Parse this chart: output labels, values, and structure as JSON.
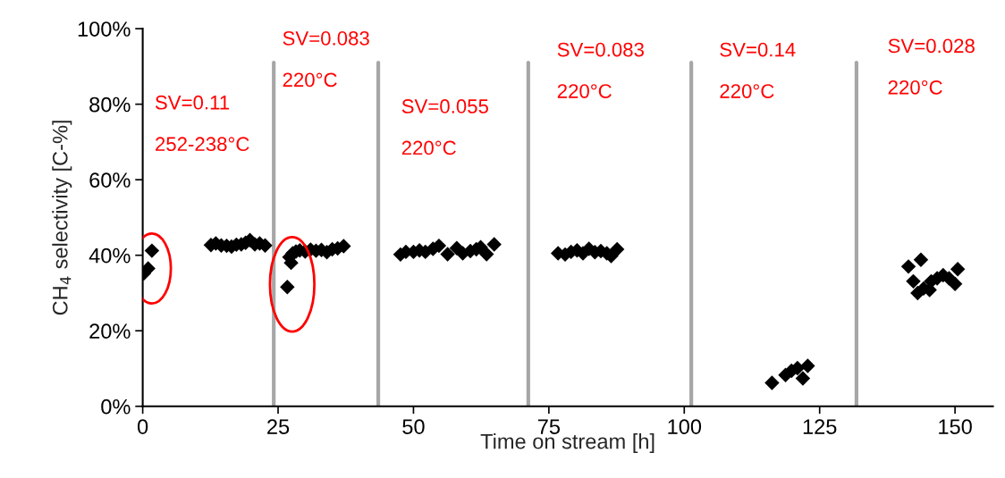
{
  "chart_data": {
    "type": "scatter",
    "xlabel": "Time on stream [h]",
    "ylabel": "CH$_{4}$ selectivity [C-%]",
    "xlim": [
      0,
      157
    ],
    "xticks": [
      0,
      25,
      50,
      75,
      100,
      125,
      150
    ],
    "ylim": [
      0,
      100
    ],
    "yticks": [
      {
        "value": 0,
        "label": "0%"
      },
      {
        "value": 20,
        "label": "20%"
      },
      {
        "value": 40,
        "label": "40%"
      },
      {
        "value": 60,
        "label": "60%"
      },
      {
        "value": 80,
        "label": "80%"
      },
      {
        "value": 100,
        "label": "100%"
      }
    ],
    "grid": false,
    "marker": "diamond",
    "series": [
      {
        "color": "#000000",
        "x": [
          0.2,
          1.0,
          1.7,
          12.6,
          13.5,
          14.5,
          15.5,
          16.4,
          17.3,
          18.2,
          19.0,
          19.8,
          20.7,
          21.6,
          22.6,
          26.7,
          27.1,
          27.4,
          27.7,
          28.3,
          29.0,
          30.0,
          31.0,
          32.0,
          33.0,
          34.0,
          35.0,
          36.0,
          37.1,
          47.6,
          48.6,
          50.0,
          51.1,
          52.2,
          53.6,
          54.7,
          56.3,
          58.0,
          59.1,
          60.5,
          61.6,
          62.4,
          63.5,
          64.9,
          76.7,
          78.0,
          79.1,
          80.2,
          81.3,
          82.4,
          83.5,
          84.6,
          85.7,
          86.5,
          87.6,
          116.2,
          118.7,
          119.8,
          120.9,
          121.9,
          122.8,
          141.4,
          142.3,
          143.1,
          143.7,
          144.2,
          145.3,
          145.6,
          146.7,
          147.8,
          148.9,
          150.0,
          150.5
        ],
        "values": [
          35.2,
          36.5,
          41.2,
          42.7,
          43.1,
          42.6,
          42.5,
          42.3,
          42.8,
          42.9,
          43.3,
          44.0,
          42.9,
          43.1,
          42.6,
          31.6,
          39.5,
          38.0,
          40.5,
          41.0,
          41.3,
          41.0,
          41.5,
          41.2,
          41.4,
          40.8,
          41.6,
          41.8,
          42.4,
          40.2,
          40.9,
          40.9,
          41.3,
          40.9,
          41.7,
          42.5,
          40.3,
          41.9,
          40.5,
          41.1,
          41.6,
          42.1,
          40.3,
          42.9,
          40.5,
          40.2,
          40.9,
          41.3,
          40.5,
          41.7,
          40.8,
          41.1,
          40.5,
          39.8,
          41.6,
          6.2,
          8.3,
          9.4,
          10.1,
          7.4,
          10.7,
          37.0,
          33.1,
          30.0,
          38.8,
          31.2,
          30.8,
          33.1,
          33.9,
          34.7,
          33.9,
          32.4,
          36.3
        ]
      }
    ],
    "ref_lines": [
      {
        "axis": "x",
        "value": 24.2,
        "color": "#a6a6a6"
      },
      {
        "axis": "x",
        "value": 43.5,
        "color": "#a6a6a6"
      },
      {
        "axis": "x",
        "value": 71.2,
        "color": "#a6a6a6"
      },
      {
        "axis": "x",
        "value": 101.3,
        "color": "#a6a6a6"
      },
      {
        "axis": "x",
        "value": 131.8,
        "color": "#a6a6a6"
      }
    ],
    "annotations": [
      "SV=0.11",
      "252-238°C",
      "SV=0.083",
      "220°C",
      "SV=0.055",
      "220°C",
      "SV=0.083",
      "220°C",
      "SV=0.14",
      "220°C",
      "SV=0.028",
      "220°C"
    ]
  }
}
